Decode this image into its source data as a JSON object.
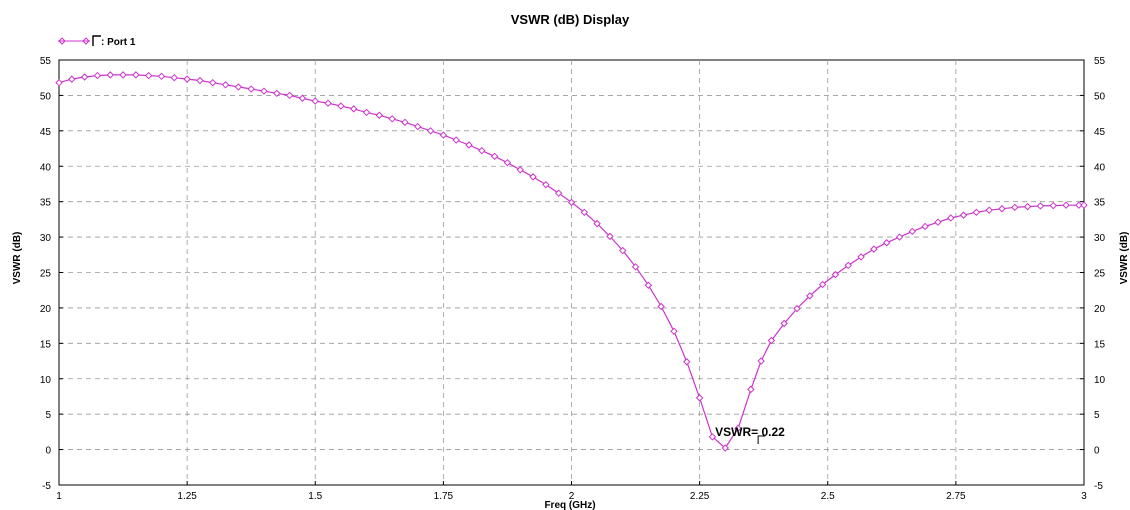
{
  "chart_data": {
    "type": "line",
    "title": "VSWR (dB) Display",
    "xlabel": "Freq (GHz)",
    "ylabel": "VSWR (dB)",
    "xlim": [
      1,
      3
    ],
    "ylim": [
      -5,
      55
    ],
    "x_ticks": [
      "1",
      "1.25",
      "1.5",
      "1.75",
      "2",
      "2.25",
      "2.5",
      "2.75",
      "3"
    ],
    "y_ticks": [
      "-5",
      "0",
      "5",
      "10",
      "15",
      "20",
      "25",
      "30",
      "35",
      "40",
      "45",
      "50",
      "55"
    ],
    "grid": true,
    "legend_position": "top-left",
    "series": [
      {
        "name": "Port 1",
        "legend_label": ": Port 1",
        "color": "#cc33cc",
        "marker": "diamond",
        "x": [
          1.0,
          1.025,
          1.05,
          1.075,
          1.1,
          1.125,
          1.15,
          1.175,
          1.2,
          1.225,
          1.25,
          1.275,
          1.3,
          1.325,
          1.35,
          1.375,
          1.4,
          1.425,
          1.45,
          1.475,
          1.5,
          1.525,
          1.55,
          1.575,
          1.6,
          1.625,
          1.65,
          1.675,
          1.7,
          1.725,
          1.75,
          1.775,
          1.8,
          1.825,
          1.85,
          1.875,
          1.9,
          1.925,
          1.95,
          1.975,
          2.0,
          2.025,
          2.05,
          2.075,
          2.1,
          2.125,
          2.15,
          2.175,
          2.2,
          2.225,
          2.25,
          2.275,
          2.3,
          2.325,
          2.35,
          2.37,
          2.39,
          2.415,
          2.44,
          2.465,
          2.49,
          2.515,
          2.54,
          2.565,
          2.59,
          2.615,
          2.64,
          2.665,
          2.69,
          2.715,
          2.74,
          2.765,
          2.79,
          2.815,
          2.84,
          2.865,
          2.89,
          2.915,
          2.94,
          2.965,
          2.99,
          3.0
        ],
        "y": [
          51.8,
          52.3,
          52.6,
          52.8,
          52.9,
          52.9,
          52.9,
          52.8,
          52.7,
          52.5,
          52.3,
          52.1,
          51.8,
          51.5,
          51.2,
          50.9,
          50.6,
          50.3,
          50.0,
          49.6,
          49.2,
          48.9,
          48.5,
          48.1,
          47.6,
          47.2,
          46.7,
          46.2,
          45.6,
          45.0,
          44.4,
          43.7,
          43.0,
          42.2,
          41.4,
          40.5,
          39.5,
          38.5,
          37.4,
          36.2,
          34.9,
          33.5,
          31.9,
          30.1,
          28.1,
          25.8,
          23.2,
          20.2,
          16.7,
          12.4,
          7.3,
          1.8,
          0.22,
          3.0,
          8.5,
          12.5,
          15.4,
          17.8,
          19.9,
          21.7,
          23.3,
          24.7,
          26.0,
          27.2,
          28.3,
          29.2,
          30.0,
          30.8,
          31.5,
          32.1,
          32.7,
          33.1,
          33.5,
          33.8,
          34.0,
          34.2,
          34.3,
          34.4,
          34.45,
          34.5,
          34.5,
          34.5
        ]
      }
    ],
    "annotations": [
      {
        "text": "VSWR= 0.22",
        "x": 2.37,
        "y": 0.22
      }
    ]
  }
}
